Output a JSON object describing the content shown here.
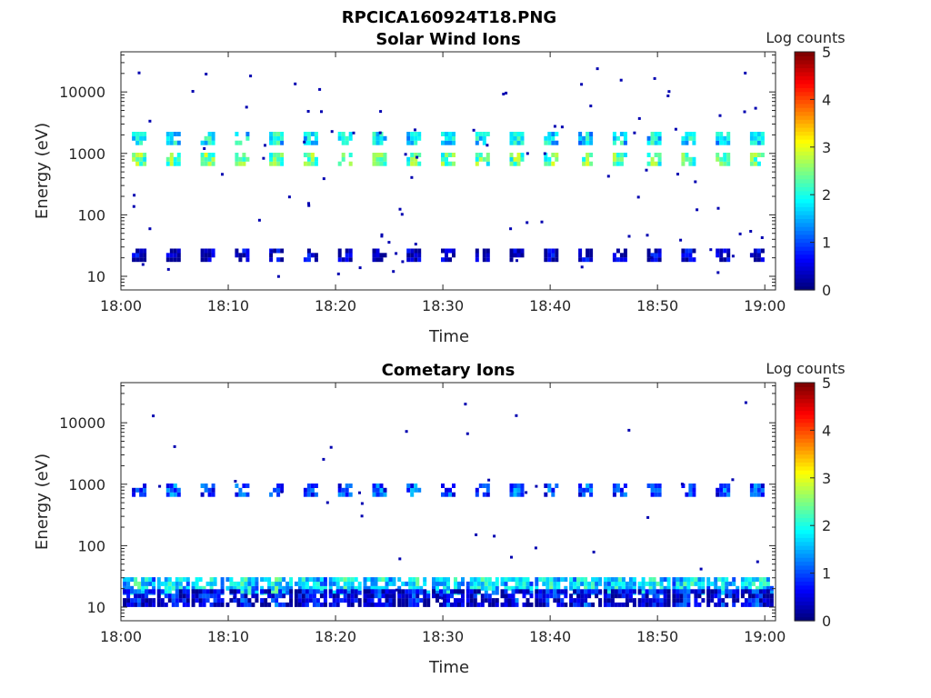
{
  "figure_title": "RPCICA160924T18.PNG",
  "colorbar": {
    "label": "Log counts",
    "ticks": [
      "0",
      "1",
      "2",
      "3",
      "4",
      "5"
    ],
    "colors": [
      "#00007f",
      "#0000ff",
      "#007fff",
      "#00ffff",
      "#7fff7f",
      "#ffff00",
      "#ff7f00",
      "#ff0000",
      "#7f0000"
    ]
  },
  "chart_data": [
    {
      "type": "heatmap",
      "title": "Solar Wind Ions",
      "xlabel": "Time",
      "ylabel": "Energy (eV)",
      "y_scale": "log",
      "ylim": [
        6,
        45000
      ],
      "xlim": [
        "18:00",
        "19:01"
      ],
      "x_tick_labels": [
        "18:00",
        "18:10",
        "18:20",
        "18:30",
        "18:40",
        "18:50",
        "19:00"
      ],
      "y_tick_labels": [
        "10",
        "100",
        "1000",
        "10000"
      ],
      "color_range": [
        0,
        5
      ],
      "burst_times_min": [
        1.7,
        4.9,
        8.1,
        11.3,
        14.5,
        17.7,
        20.9,
        24.1,
        27.3,
        30.5,
        33.7,
        36.9,
        40.1,
        43.3,
        46.5,
        49.7,
        52.9,
        56.1,
        59.3
      ],
      "bands": [
        {
          "energy_eV": 1750,
          "log_counts": 1.9
        },
        {
          "energy_eV": 800,
          "log_counts": 2.5
        },
        {
          "energy_eV": 22,
          "log_counts": 0.4
        }
      ]
    },
    {
      "type": "heatmap",
      "title": "Cometary Ions",
      "xlabel": "Time",
      "ylabel": "Energy (eV)",
      "y_scale": "log",
      "ylim": [
        6,
        45000
      ],
      "xlim": [
        "18:00",
        "19:01"
      ],
      "x_tick_labels": [
        "18:00",
        "18:10",
        "18:20",
        "18:30",
        "18:40",
        "18:50",
        "19:00"
      ],
      "y_tick_labels": [
        "10",
        "100",
        "1000",
        "10000"
      ],
      "color_range": [
        0,
        5
      ],
      "burst_times_min": [
        1.7,
        4.9,
        8.1,
        11.3,
        14.5,
        17.7,
        20.9,
        24.1,
        27.3,
        30.5,
        33.7,
        36.9,
        40.1,
        43.3,
        46.5,
        49.7,
        52.9,
        56.1,
        59.3
      ],
      "bands": [
        {
          "energy_eV": 800,
          "log_counts": 1.1
        },
        {
          "energy_eV": 22,
          "log_counts": 2.0
        },
        {
          "energy_eV": 14,
          "log_counts": 0.8
        }
      ]
    }
  ]
}
